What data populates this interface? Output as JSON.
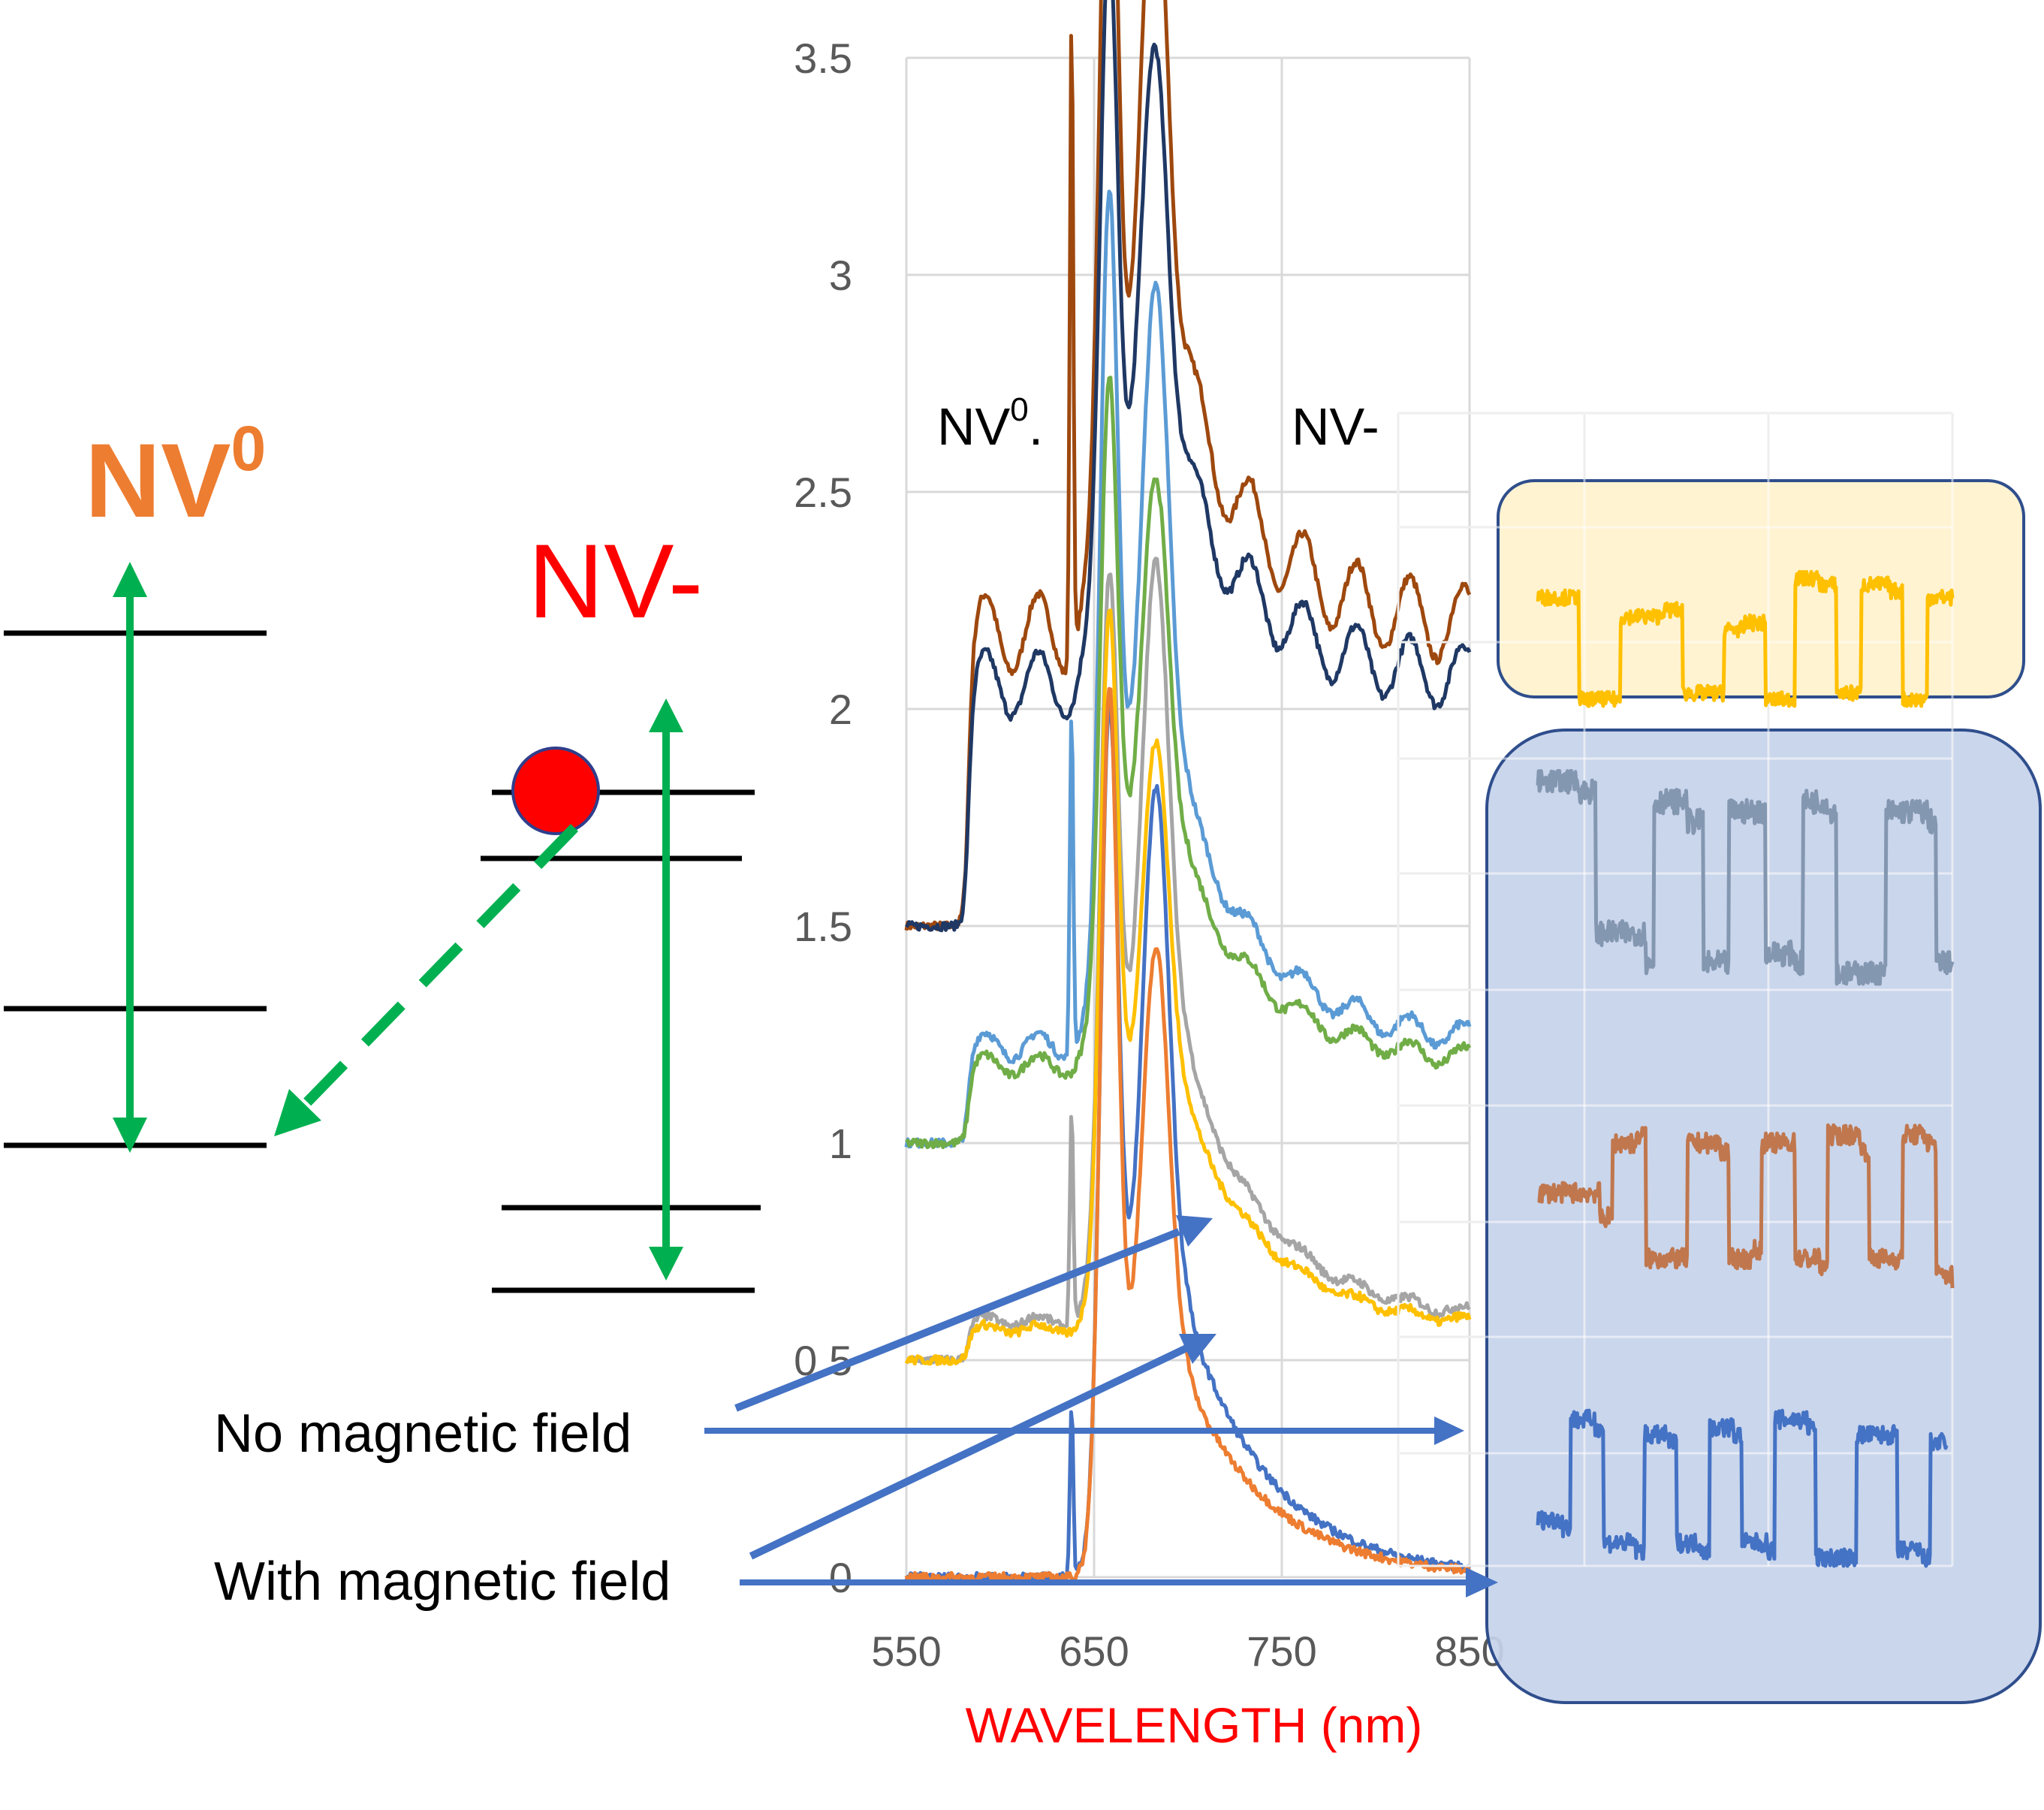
{
  "left_diagram": {
    "nv0_label": "NV",
    "nv0_superscript": "0",
    "nv0_color": "#ED7D31",
    "nvminus_label": "NV-",
    "nvminus_color": "#FF0000",
    "arrow_color": "#00B050",
    "dot_color": "#FF0000"
  },
  "annotations": {
    "nv0_peak_label": "NV",
    "nv0_peak_superscript": "0",
    "nv0_peak_suffix": ".",
    "nvminus_peak_label": "NV-",
    "no_field": "No  magnetic field",
    "with_field": "With magnetic field",
    "pointer_color": "#4472C4"
  },
  "panels": {
    "top_fill": "#FFF2CC",
    "bottom_fill": "#C5D3EA",
    "border_color": "#2F4E8C"
  },
  "chart_data": {
    "type": "line",
    "xlabel": "WAVELENGTH (nm)",
    "xlabel_color": "#FF0000",
    "ylabel": "",
    "xlim": [
      550,
      850
    ],
    "ylim": [
      0,
      3.5
    ],
    "x_ticks": [
      "550",
      "650",
      "750",
      "850"
    ],
    "y_ticks": [
      "0",
      "0.5",
      "1",
      "1.5",
      "2",
      "2.5",
      "3",
      "3.5"
    ],
    "grid": true,
    "series": [
      {
        "color": "#9E480E",
        "offset": 1.5,
        "nv0_height": 0.75,
        "peak": 1.7,
        "peak2": 1.25,
        "shoulder": 0.55,
        "spike": 1.5,
        "values_note_skip": null
      },
      {
        "color": "#1F3864",
        "offset": 1.5,
        "nv0_height": 0.62,
        "peak": 1.36,
        "peak2": 1.0,
        "shoulder": 0.45,
        "spike": 0.0
      },
      {
        "color": "#5B9BD5",
        "offset": 1.0,
        "nv0_height": 0.25,
        "peak": 1.5,
        "peak2": 1.2,
        "shoulder": 0.55,
        "spike": 0.8
      },
      {
        "color": "#70AD47",
        "offset": 1.0,
        "nv0_height": 0.2,
        "peak": 1.2,
        "peak2": 0.9,
        "shoulder": 0.45,
        "spike": 0.0
      },
      {
        "color": "#A5A5A5",
        "offset": 0.5,
        "nv0_height": 0.1,
        "peak": 1.2,
        "peak2": 1.15,
        "shoulder": 0.6,
        "spike": 0.5
      },
      {
        "color": "#FFC000",
        "offset": 0.5,
        "nv0_height": 0.08,
        "peak": 1.22,
        "peak2": 0.85,
        "shoulder": 0.5,
        "spike": 0.0
      },
      {
        "color": "#4472C4",
        "offset": 0.0,
        "nv0_height": 0.0,
        "peak": 1.48,
        "peak2": 1.22,
        "shoulder": 0.6,
        "spike": 0.4
      },
      {
        "color": "#ED7D31",
        "offset": 0.0,
        "nv0_height": 0.0,
        "peak": 1.65,
        "peak2": 1.0,
        "shoulder": 0.45,
        "spike": 0.0
      }
    ],
    "time_traces": [
      {
        "color": "#FFC000",
        "panel": "top",
        "high_level": 0.8,
        "low_level": 0.1,
        "steps": [
          [
            0,
            0.85
          ],
          [
            0.1,
            0.05
          ],
          [
            0.2,
            0.7
          ],
          [
            0.3,
            0.75
          ],
          [
            0.35,
            0.1
          ],
          [
            0.45,
            0.6
          ],
          [
            0.5,
            0.65
          ],
          [
            0.55,
            0.05
          ],
          [
            0.62,
            1.0
          ],
          [
            0.68,
            0.95
          ],
          [
            0.72,
            0.1
          ],
          [
            0.78,
            0.95
          ],
          [
            0.85,
            0.9
          ],
          [
            0.88,
            0.05
          ],
          [
            0.94,
            0.85
          ],
          [
            1,
            0.85
          ]
        ]
      },
      {
        "color": "#8497B0",
        "panel": "bottom",
        "high_level": 0.9,
        "low_level": 0.1,
        "steps": [
          [
            0,
            1.0
          ],
          [
            0.1,
            0.95
          ],
          [
            0.14,
            0.25
          ],
          [
            0.26,
            0.1
          ],
          [
            0.28,
            0.9
          ],
          [
            0.36,
            0.8
          ],
          [
            0.4,
            0.1
          ],
          [
            0.46,
            0.85
          ],
          [
            0.52,
            0.85
          ],
          [
            0.55,
            0.15
          ],
          [
            0.62,
            0.1
          ],
          [
            0.64,
            0.9
          ],
          [
            0.7,
            0.85
          ],
          [
            0.72,
            0.05
          ],
          [
            0.82,
            0.05
          ],
          [
            0.84,
            0.85
          ],
          [
            0.94,
            0.8
          ],
          [
            0.96,
            0.1
          ],
          [
            1,
            0.1
          ]
        ]
      },
      {
        "color": "#C0774E",
        "panel": "bottom",
        "high_level": 0.85,
        "low_level": 0.2,
        "steps": [
          [
            0,
            0.6
          ],
          [
            0.15,
            0.45
          ],
          [
            0.18,
            0.9
          ],
          [
            0.24,
            0.95
          ],
          [
            0.26,
            0.2
          ],
          [
            0.34,
            0.2
          ],
          [
            0.36,
            0.9
          ],
          [
            0.44,
            0.85
          ],
          [
            0.46,
            0.2
          ],
          [
            0.52,
            0.25
          ],
          [
            0.54,
            0.9
          ],
          [
            0.6,
            0.9
          ],
          [
            0.62,
            0.2
          ],
          [
            0.68,
            0.15
          ],
          [
            0.7,
            0.95
          ],
          [
            0.78,
            0.85
          ],
          [
            0.8,
            0.2
          ],
          [
            0.86,
            0.2
          ],
          [
            0.88,
            0.95
          ],
          [
            0.94,
            0.9
          ],
          [
            0.96,
            0.1
          ],
          [
            1,
            0.05
          ]
        ]
      },
      {
        "color": "#4472C4",
        "panel": "bottom",
        "high_level": 0.85,
        "low_level": 0.1,
        "steps": [
          [
            0,
            0.3
          ],
          [
            0.06,
            0.25
          ],
          [
            0.08,
            0.95
          ],
          [
            0.14,
            0.9
          ],
          [
            0.16,
            0.15
          ],
          [
            0.24,
            0.1
          ],
          [
            0.26,
            0.85
          ],
          [
            0.32,
            0.8
          ],
          [
            0.34,
            0.15
          ],
          [
            0.4,
            0.1
          ],
          [
            0.42,
            0.9
          ],
          [
            0.48,
            0.85
          ],
          [
            0.5,
            0.15
          ],
          [
            0.56,
            0.1
          ],
          [
            0.58,
            0.95
          ],
          [
            0.66,
            0.9
          ],
          [
            0.68,
            0.05
          ],
          [
            0.76,
            0.05
          ],
          [
            0.78,
            0.85
          ],
          [
            0.86,
            0.85
          ],
          [
            0.88,
            0.1
          ],
          [
            0.94,
            0.05
          ],
          [
            0.96,
            0.8
          ],
          [
            1,
            0.8
          ]
        ]
      }
    ]
  }
}
